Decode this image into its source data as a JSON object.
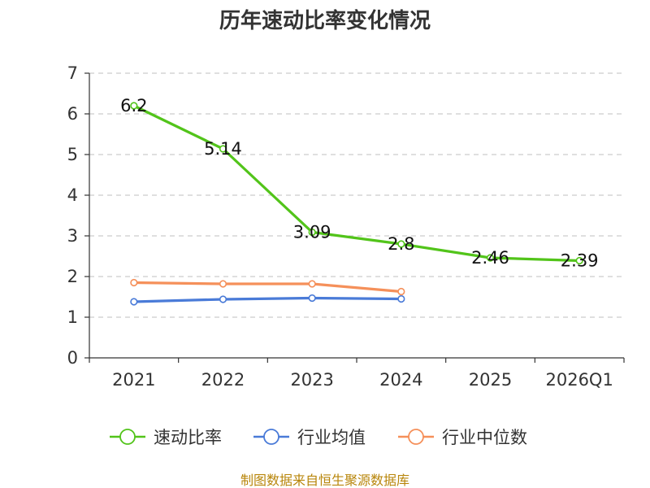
{
  "chart_data": {
    "type": "line",
    "title": "历年速动比率变化情况",
    "categories": [
      "2021",
      "2022",
      "2023",
      "2024",
      "2025",
      "2026Q1"
    ],
    "ylim": [
      0,
      7
    ],
    "yticks": [
      "0",
      "1",
      "2",
      "3",
      "4",
      "5",
      "6",
      "7"
    ],
    "grid": true,
    "legend_position": "bottom",
    "series": [
      {
        "name": "速动比率",
        "color": "#52c41a",
        "values": [
          6.2,
          5.14,
          3.09,
          2.8,
          2.46,
          2.39
        ],
        "labels": [
          "6.2",
          "5.14",
          "3.09",
          "2.8",
          "2.46",
          "2.39"
        ]
      },
      {
        "name": "行业均值",
        "color": "#4a7bd8",
        "values": [
          1.38,
          1.44,
          1.47,
          1.45,
          null,
          null
        ]
      },
      {
        "name": "行业中位数",
        "color": "#f5905a",
        "values": [
          1.85,
          1.82,
          1.82,
          1.63,
          null,
          null
        ]
      }
    ],
    "source": "制图数据来自恒生聚源数据库"
  }
}
